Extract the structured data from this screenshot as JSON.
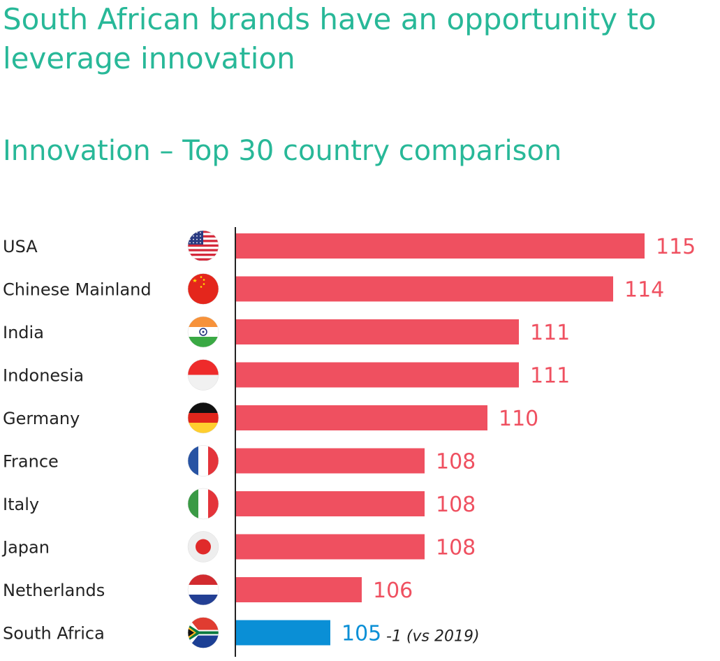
{
  "header": {
    "headline": "South African brands have an opportunity to leverage innovation",
    "subtitle": "Innovation – Top 30 country comparison"
  },
  "colors": {
    "headline": "#28b898",
    "bar_default": "#ef5060",
    "bar_highlight": "#0a8fd6",
    "axis": "#222222"
  },
  "chart_data": {
    "type": "bar",
    "orientation": "horizontal",
    "title": "Innovation – Top 30 country comparison",
    "categories": [
      "USA",
      "Chinese Mainland",
      "India",
      "Indonesia",
      "Germany",
      "France",
      "Italy",
      "Japan",
      "Netherlands",
      "South Africa"
    ],
    "values": [
      115,
      114,
      111,
      111,
      110,
      108,
      108,
      108,
      106,
      105
    ],
    "flags": [
      "us-flag-icon",
      "china-flag-icon",
      "india-flag-icon",
      "indonesia-flag-icon",
      "germany-flag-icon",
      "france-flag-icon",
      "italy-flag-icon",
      "japan-flag-icon",
      "netherlands-flag-icon",
      "south-africa-flag-icon"
    ],
    "highlight": "South Africa",
    "annotations": [
      {
        "category": "South Africa",
        "text": "-1 (vs 2019)"
      }
    ],
    "xlabel": "",
    "ylabel": "",
    "grid": false,
    "legend": "none"
  }
}
